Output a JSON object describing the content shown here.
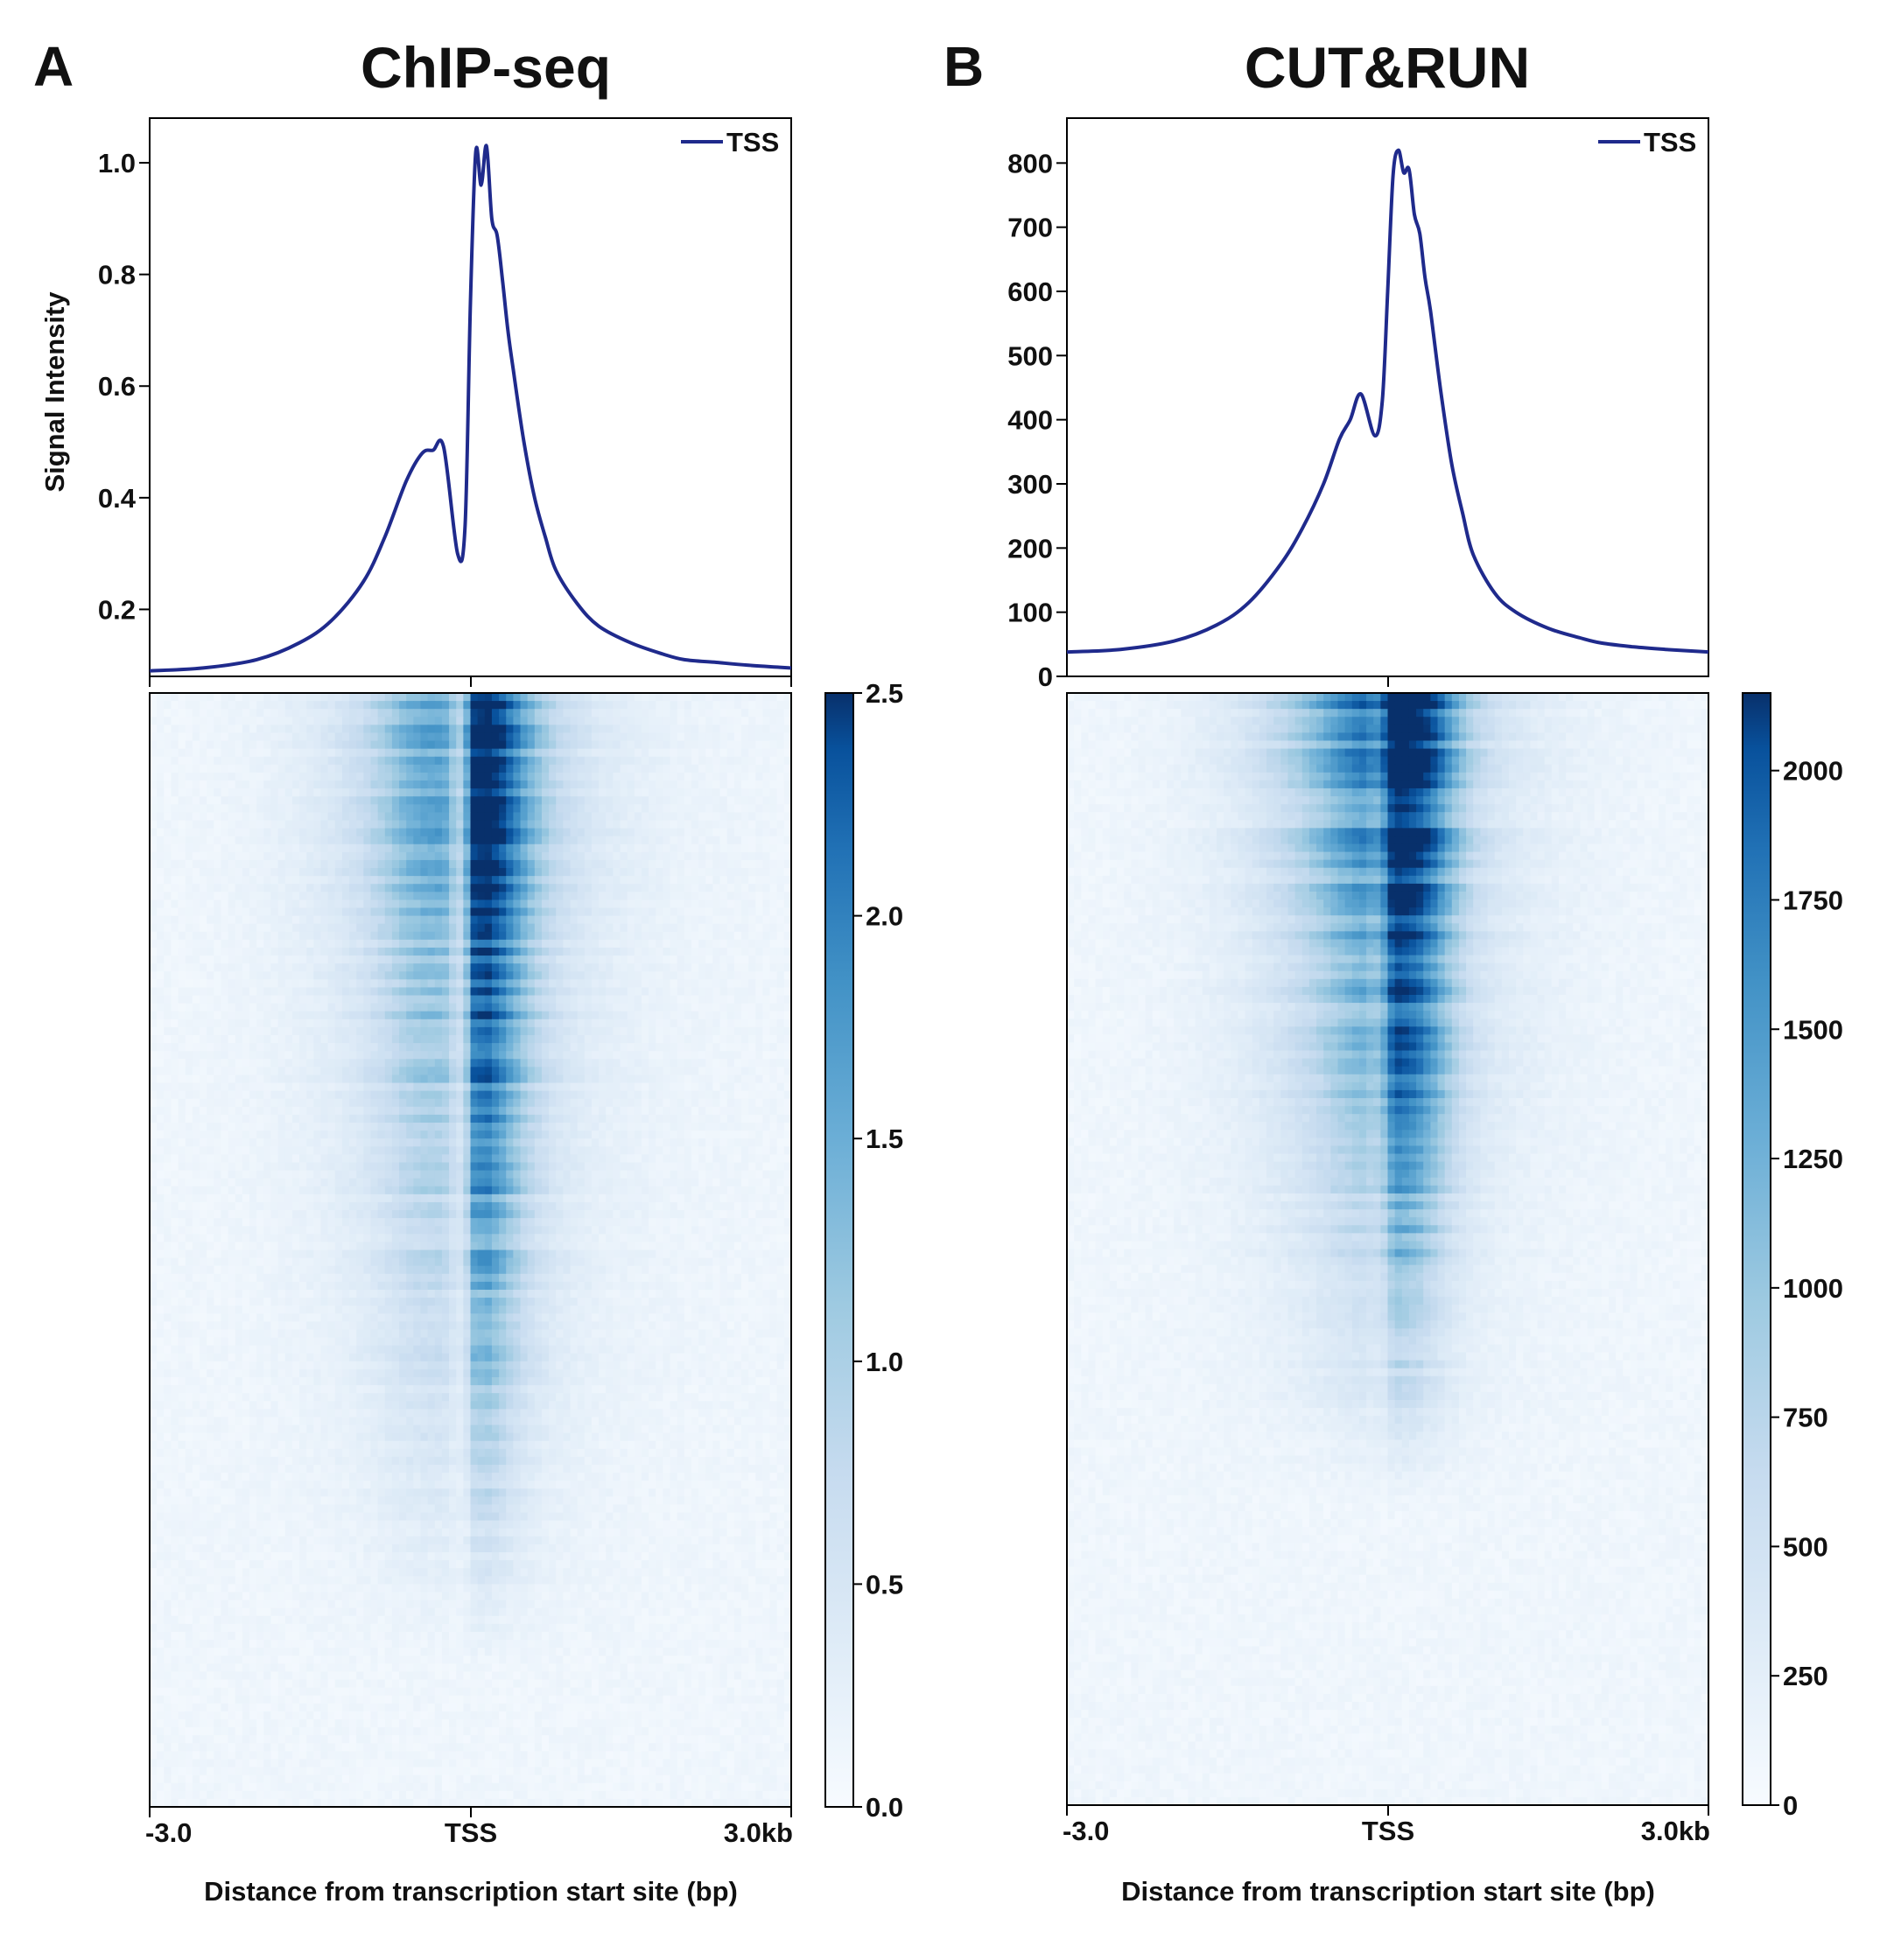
{
  "panels": [
    {
      "letter": "A",
      "title": "ChIP-seq",
      "line_color": "#1f2a8c",
      "chart_data": {
        "type": "line",
        "title": "ChIP-seq",
        "ylabel": "Signal Intensity",
        "ylim": [
          0.08,
          1.08
        ],
        "yticks": [
          0.2,
          0.4,
          0.6,
          0.8,
          1.0
        ],
        "ytick_labels": [
          "0.2",
          "0.4",
          "0.6",
          "0.8",
          "1.0"
        ],
        "legend": "TSS",
        "x_kb": [
          -3.0,
          -2.5,
          -2.0,
          -1.6,
          -1.3,
          -1.0,
          -0.8,
          -0.6,
          -0.45,
          -0.35,
          -0.25,
          -0.12,
          -0.05,
          0.0,
          0.05,
          0.1,
          0.15,
          0.2,
          0.25,
          0.3,
          0.35,
          0.4,
          0.5,
          0.6,
          0.7,
          0.8,
          1.0,
          1.2,
          1.5,
          1.8,
          2.0,
          2.3,
          2.6,
          3.0
        ],
        "y": [
          0.09,
          0.095,
          0.11,
          0.14,
          0.18,
          0.25,
          0.33,
          0.43,
          0.48,
          0.485,
          0.49,
          0.3,
          0.35,
          0.75,
          1.02,
          0.96,
          1.03,
          0.9,
          0.87,
          0.79,
          0.7,
          0.63,
          0.5,
          0.4,
          0.33,
          0.27,
          0.21,
          0.17,
          0.14,
          0.12,
          0.11,
          0.105,
          0.1,
          0.095
        ]
      },
      "heatmap": {
        "type": "heatmap",
        "colorbar_min": 0.0,
        "colorbar_max": 2.5,
        "colorbar_ticks": [
          0.0,
          0.5,
          1.0,
          1.5,
          2.0,
          2.5
        ],
        "colorbar_tick_labels": [
          "0.0",
          "0.5",
          "1.0",
          "1.5",
          "2.0",
          "2.5"
        ],
        "xtick_labels": [
          "-3.0",
          "TSS",
          "3.0kb"
        ],
        "xlabel": "Distance from transcription start site (bp)"
      }
    },
    {
      "letter": "B",
      "title": "CUT&RUN",
      "line_color": "#1f2a8c",
      "chart_data": {
        "type": "line",
        "title": "CUT&RUN",
        "ylabel": "",
        "ylim": [
          0,
          870
        ],
        "yticks": [
          0,
          100,
          200,
          300,
          400,
          500,
          600,
          700,
          800
        ],
        "ytick_labels": [
          "0",
          "100",
          "200",
          "300",
          "400",
          "500",
          "600",
          "700",
          "800"
        ],
        "legend": "TSS",
        "x_kb": [
          -3.0,
          -2.5,
          -2.0,
          -1.6,
          -1.3,
          -1.0,
          -0.8,
          -0.6,
          -0.45,
          -0.35,
          -0.25,
          -0.12,
          -0.05,
          0.0,
          0.05,
          0.1,
          0.15,
          0.2,
          0.25,
          0.3,
          0.35,
          0.4,
          0.5,
          0.6,
          0.7,
          0.8,
          1.0,
          1.2,
          1.5,
          1.8,
          2.0,
          2.3,
          2.6,
          3.0
        ],
        "y": [
          38,
          42,
          55,
          80,
          115,
          175,
          230,
          300,
          370,
          400,
          440,
          375,
          430,
          600,
          780,
          820,
          785,
          790,
          720,
          690,
          620,
          570,
          440,
          330,
          255,
          190,
          130,
          100,
          75,
          60,
          52,
          46,
          42,
          38
        ]
      },
      "heatmap": {
        "type": "heatmap",
        "colorbar_min": 0,
        "colorbar_max": 2150,
        "colorbar_ticks": [
          0,
          250,
          500,
          750,
          1000,
          1250,
          1500,
          1750,
          2000
        ],
        "colorbar_tick_labels": [
          "0",
          "250",
          "500",
          "750",
          "1000",
          "1250",
          "1500",
          "1750",
          "2000"
        ],
        "xtick_labels": [
          "-3.0",
          "TSS",
          "3.0kb"
        ],
        "xlabel": "Distance from transcription start site (bp)"
      }
    }
  ]
}
